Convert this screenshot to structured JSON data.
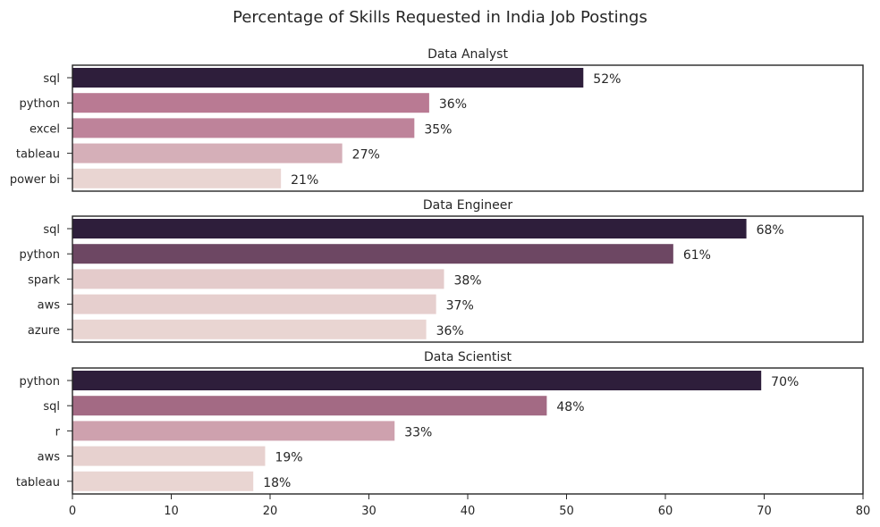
{
  "chart_data": {
    "title": "Percentage of Skills Requested in India Job Postings",
    "type": "bar",
    "orientation": "horizontal",
    "xlim": [
      0,
      80
    ],
    "x_ticks": [
      0,
      10,
      20,
      30,
      40,
      50,
      60,
      70,
      80
    ],
    "label_suffix": "%",
    "palette": {
      "low": "#e9d5d2",
      "high": "#2e1e3b"
    },
    "panels": [
      {
        "title": "Data Analyst",
        "categories": [
          "sql",
          "python",
          "excel",
          "tableau",
          "power bi"
        ],
        "values": [
          51.7,
          36.1,
          34.6,
          27.3,
          21.1
        ],
        "labels": [
          "52%",
          "36%",
          "35%",
          "27%",
          "21%"
        ]
      },
      {
        "title": "Data Engineer",
        "categories": [
          "sql",
          "python",
          "spark",
          "aws",
          "azure"
        ],
        "values": [
          68.2,
          60.8,
          37.6,
          36.8,
          35.8
        ],
        "labels": [
          "68%",
          "61%",
          "38%",
          "37%",
          "36%"
        ]
      },
      {
        "title": "Data Scientist",
        "categories": [
          "python",
          "sql",
          "r",
          "aws",
          "tableau"
        ],
        "values": [
          69.7,
          48.0,
          32.6,
          19.5,
          18.3
        ],
        "labels": [
          "70%",
          "48%",
          "33%",
          "19%",
          "18%"
        ]
      }
    ]
  }
}
